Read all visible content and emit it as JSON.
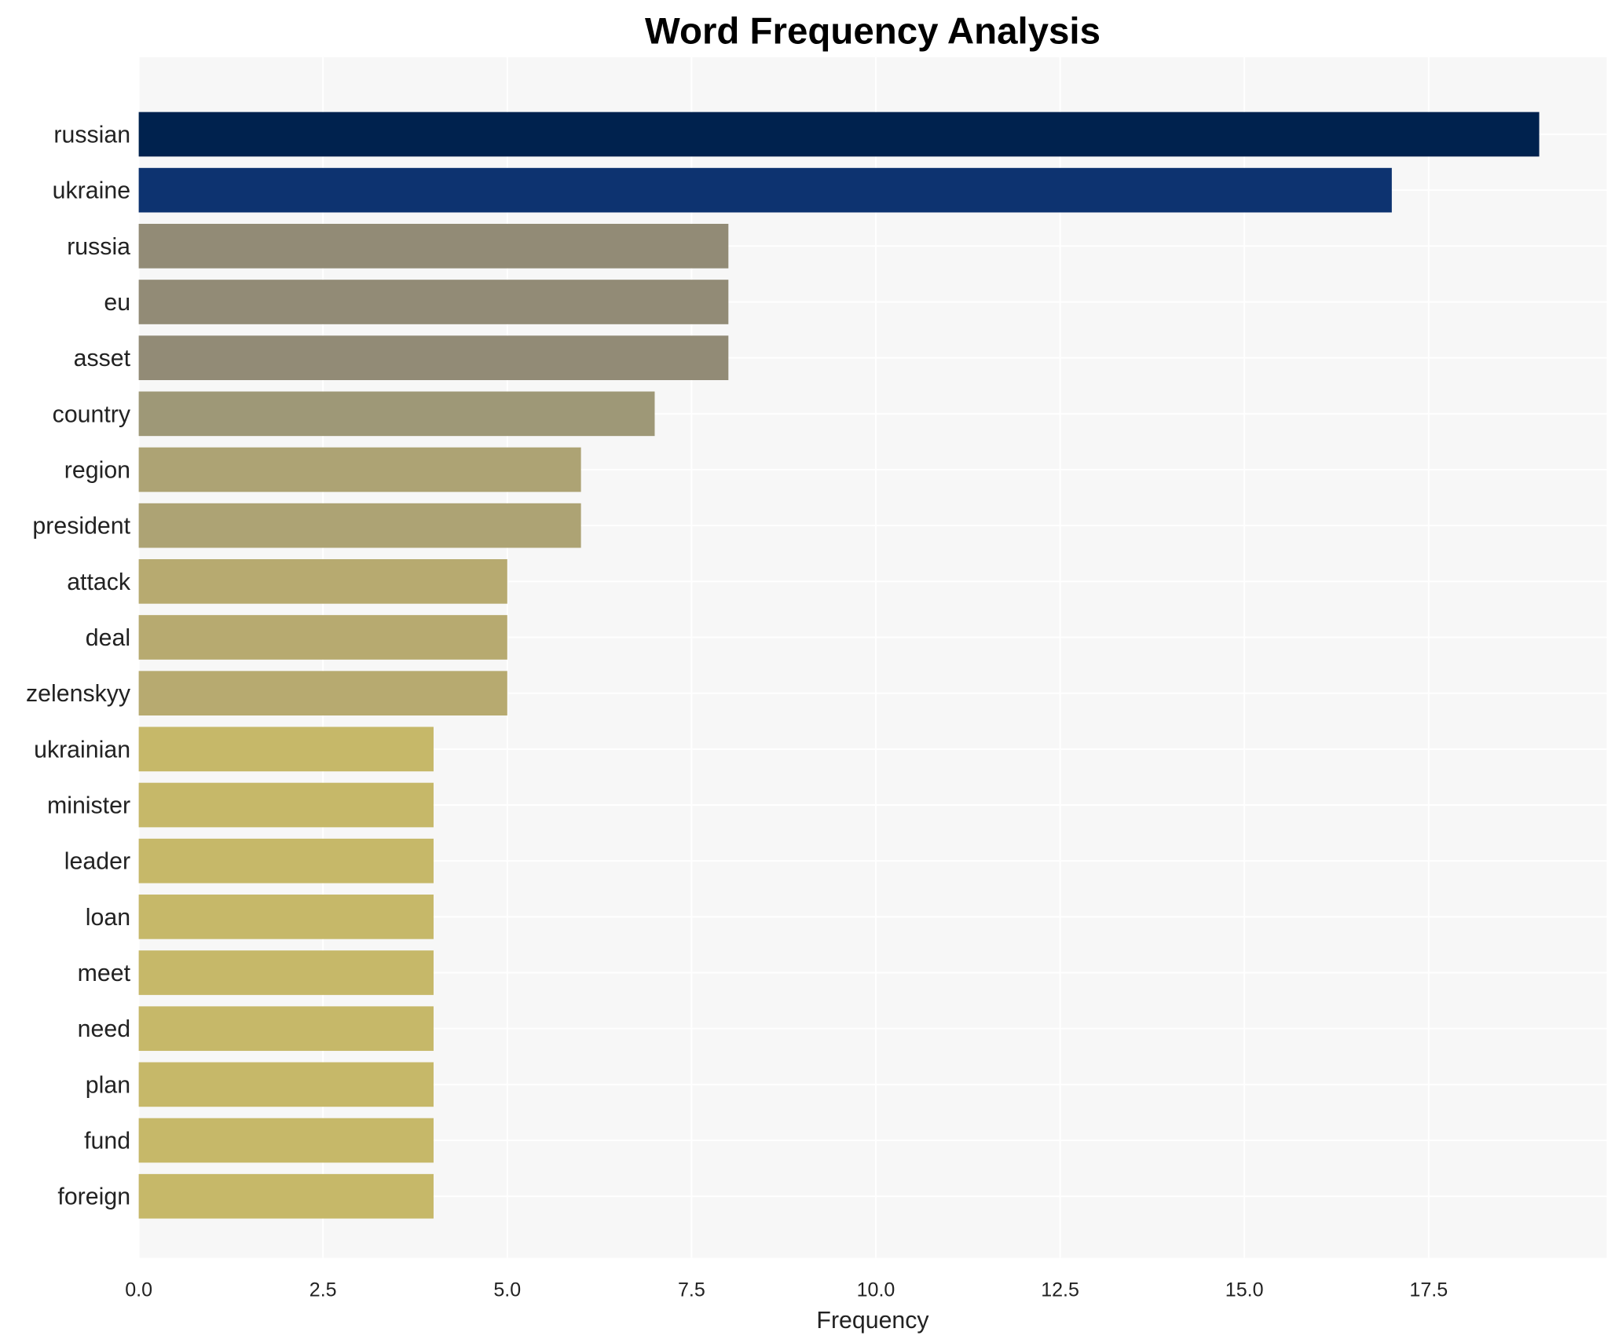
{
  "chart_data": {
    "type": "bar",
    "orientation": "horizontal",
    "title": "Word Frequency Analysis",
    "xlabel": "Frequency",
    "ylabel": "",
    "xlim": [
      0,
      19.9
    ],
    "xticks": [
      "0.0",
      "2.5",
      "5.0",
      "7.5",
      "10.0",
      "12.5",
      "15.0",
      "17.5"
    ],
    "xtick_values": [
      0,
      2.5,
      5,
      7.5,
      10,
      12.5,
      15,
      17.5
    ],
    "grid": true,
    "categories": [
      "russian",
      "ukraine",
      "russia",
      "eu",
      "asset",
      "country",
      "region",
      "president",
      "attack",
      "deal",
      "zelenskyy",
      "ukrainian",
      "minister",
      "leader",
      "loan",
      "meet",
      "need",
      "plan",
      "fund",
      "foreign"
    ],
    "values": [
      19,
      17,
      8,
      8,
      8,
      7,
      6,
      6,
      5,
      5,
      5,
      4,
      4,
      4,
      4,
      4,
      4,
      4,
      4,
      4
    ],
    "colors": [
      "#00224e",
      "#0d3370",
      "#928b76",
      "#928b76",
      "#928b76",
      "#9e9877",
      "#ada374",
      "#ada374",
      "#b7aa70",
      "#b7aa70",
      "#b7aa70",
      "#c6b869",
      "#c6b869",
      "#c6b869",
      "#c6b869",
      "#c6b869",
      "#c6b869",
      "#c6b869",
      "#c6b869",
      "#c6b869"
    ],
    "background": "#f7f7f7"
  }
}
